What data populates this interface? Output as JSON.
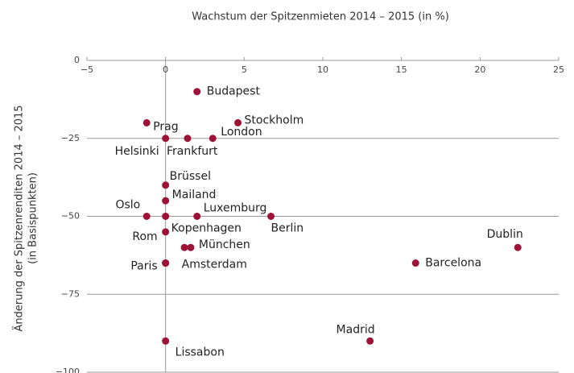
{
  "chart_data": {
    "type": "scatter",
    "title": "Wachstum der Spitzenmieten 2014 – 2015 (in %)",
    "y_label": [
      "Änderung der Spitzenrenditen 2014 – 2015",
      "(in Basispunkten)"
    ],
    "labels": [
      "Budapest",
      "Stockholm",
      "Prag",
      "Helsinki",
      "Frankfurt",
      "London",
      "Brüssel",
      "Mailand",
      "Oslo",
      "Kopenhagen",
      "Rom",
      "Luxemburg",
      "Berlin",
      "München",
      null,
      "Paris",
      "Amsterdam",
      "Barcelona",
      "Dublin",
      "Madrid",
      "Lissabon"
    ],
    "x": [
      2.0,
      4.6,
      -1.2,
      0,
      1.4,
      3.0,
      0,
      0,
      -1.2,
      0,
      0,
      2.0,
      6.7,
      1.6,
      1.2,
      0,
      0,
      15.9,
      22.4,
      13.0,
      0
    ],
    "values": [
      -10,
      -20,
      -20,
      -25,
      -25,
      -25,
      -40,
      -45,
      -50,
      -50,
      -55,
      -50,
      -50,
      -60,
      -60,
      -65,
      -65,
      -65,
      -60,
      -90,
      -90
    ],
    "color": "#9e1238",
    "xlim": [
      -5,
      25
    ],
    "xticks": [
      {
        "value": -5,
        "label": "−5"
      },
      0,
      5,
      10,
      15,
      20,
      25
    ],
    "ylim": [
      -100,
      0
    ],
    "yticks": [
      0,
      {
        "value": -25,
        "label": "−25"
      },
      {
        "value": -50,
        "label": "−50"
      },
      {
        "value": -75,
        "label": "−75"
      },
      {
        "value": -100,
        "label": "−100"
      }
    ],
    "grid": true
  }
}
